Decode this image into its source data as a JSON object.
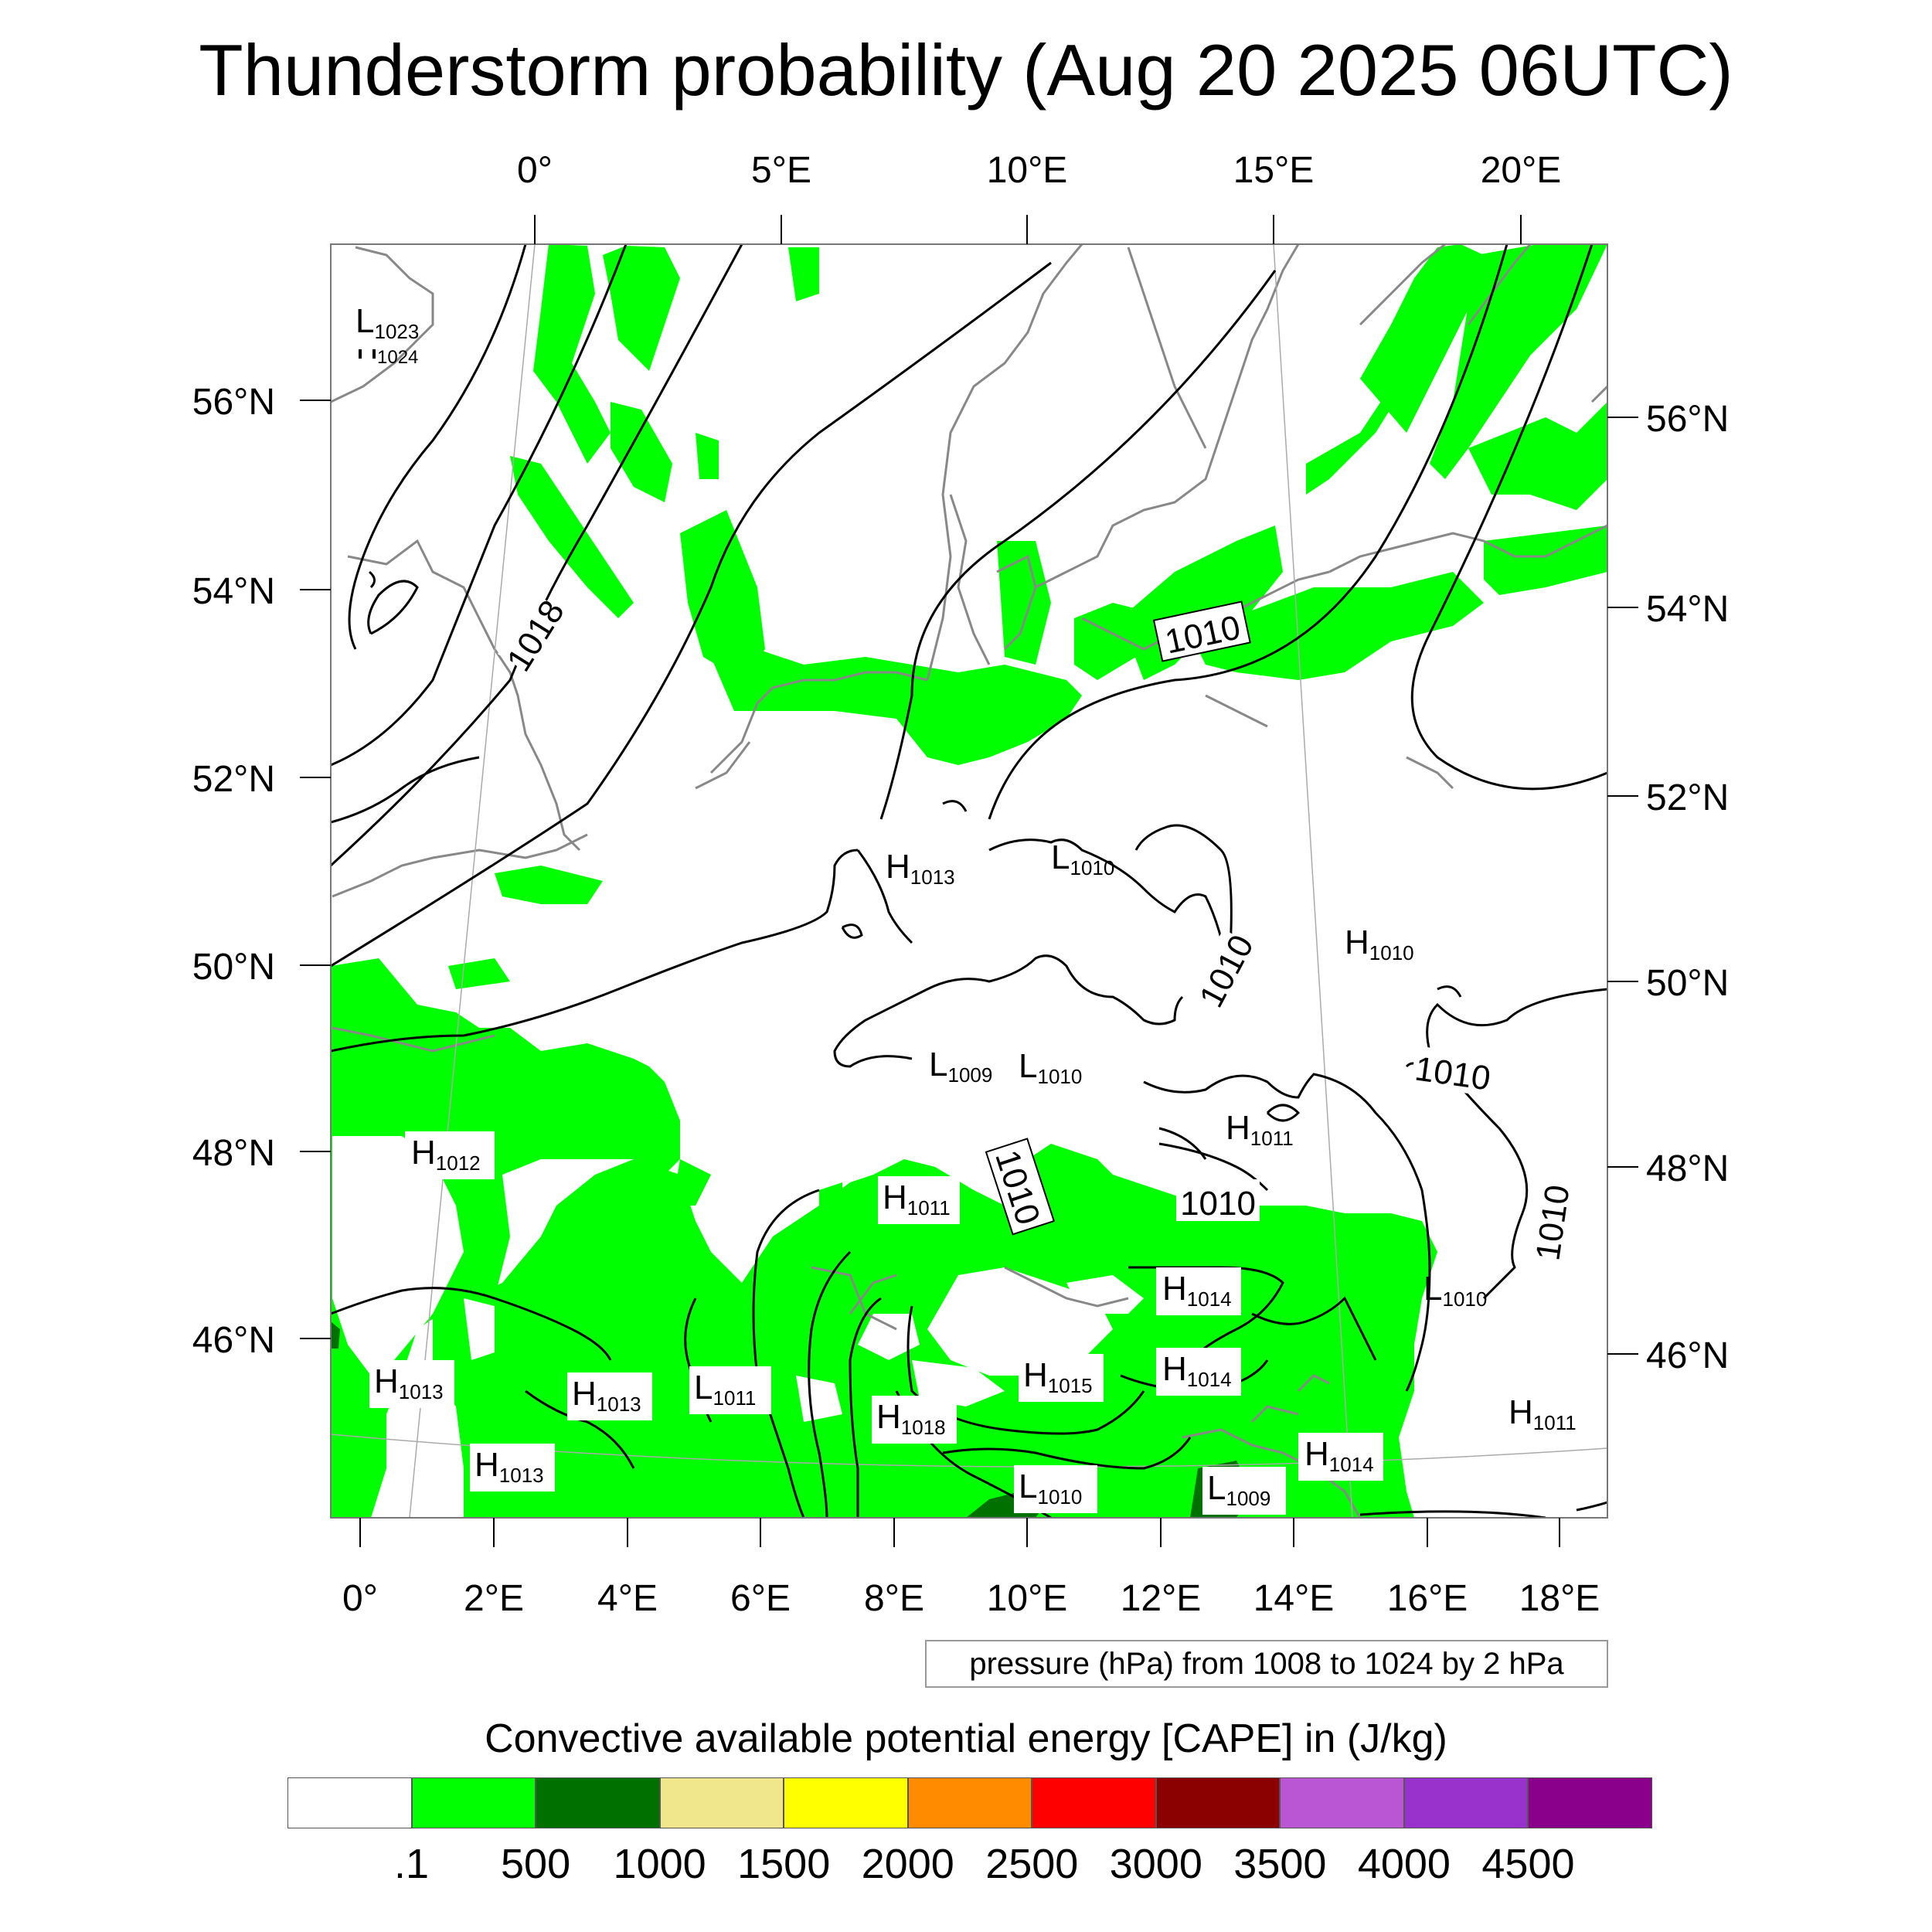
{
  "title": "Thunderstorm probability (Aug 20 2025 06UTC)",
  "top_lon_labels": [
    "0°",
    "5°E",
    "10°E",
    "15°E",
    "20°E"
  ],
  "bottom_lon_labels": [
    "0°",
    "2°E",
    "4°E",
    "6°E",
    "8°E",
    "10°E",
    "12°E",
    "14°E",
    "16°E",
    "18°E"
  ],
  "left_lat_labels": [
    "56°N",
    "54°N",
    "52°N",
    "50°N",
    "48°N",
    "46°N"
  ],
  "right_lat_labels": [
    "56°N",
    "54°N",
    "52°N",
    "50°N",
    "48°N",
    "46°N"
  ],
  "pressure_centers": [
    {
      "type": "L",
      "value": "1023"
    },
    {
      "type": "H",
      "value": "1013"
    },
    {
      "type": "L",
      "value": "1010"
    },
    {
      "type": "H",
      "value": "1010"
    },
    {
      "type": "L",
      "value": "1009"
    },
    {
      "type": "L",
      "value": "1010"
    },
    {
      "type": "H",
      "value": "1012"
    },
    {
      "type": "H",
      "value": "1011"
    },
    {
      "type": "H",
      "value": "1011"
    },
    {
      "type": "H",
      "value": "1014"
    },
    {
      "type": "L",
      "value": "1010"
    },
    {
      "type": "H",
      "value": "1013"
    },
    {
      "type": "H",
      "value": "1013"
    },
    {
      "type": "L",
      "value": "1011"
    },
    {
      "type": "H",
      "value": "1015"
    },
    {
      "type": "H",
      "value": "1014"
    },
    {
      "type": "H",
      "value": "1018"
    },
    {
      "type": "H",
      "value": "1013"
    },
    {
      "type": "L",
      "value": "1010"
    },
    {
      "type": "L",
      "value": "1009"
    },
    {
      "type": "H",
      "value": "1014"
    },
    {
      "type": "H",
      "value": "1011"
    }
  ],
  "isobar_labels": [
    "1024",
    "1018",
    "1010",
    "1010",
    "1010",
    "1010",
    "1010",
    "1010"
  ],
  "pressure_note": "pressure (hPa) from 1008 to 1024 by 2 hPa",
  "colorbar": {
    "title": "Convective available potential energy [CAPE] in (J/kg)",
    "colors": [
      "#ffffff",
      "#00ff00",
      "#007000",
      "#f0e68c",
      "#ffff00",
      "#ff8c00",
      "#ff0000",
      "#8b0000",
      "#ba55d3",
      "#9932cc",
      "#8b008b"
    ],
    "ticks": [
      ".1",
      "500",
      "1000",
      "1500",
      "2000",
      "2500",
      "3000",
      "3500",
      "4000",
      "4500"
    ]
  },
  "colors": {
    "cape_low": "#00ff00",
    "cape_mid": "#007000",
    "coastline": "#888888",
    "isobar": "#000000"
  }
}
